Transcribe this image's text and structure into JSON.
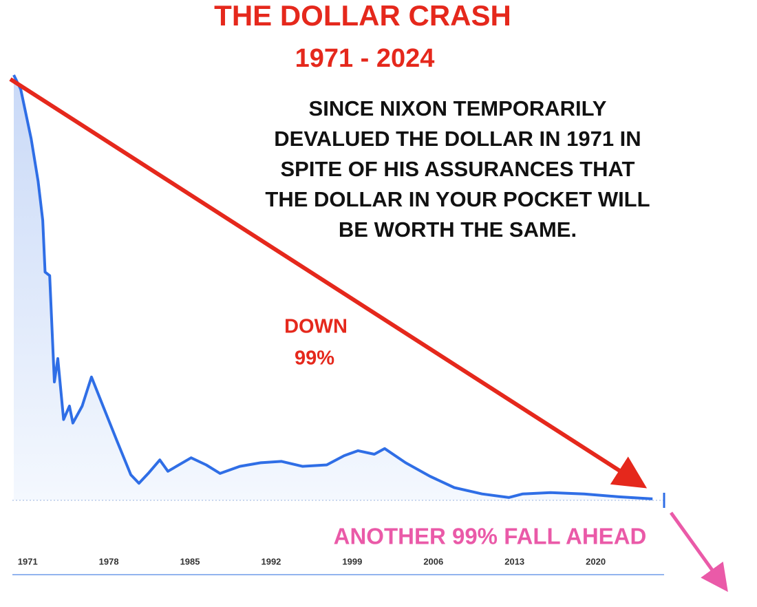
{
  "chart_data": {
    "type": "line",
    "title": "THE DOLLAR CRASH",
    "subtitle": "1971 - 2024",
    "annotations": [
      "SINCE NIXON TEMPORARILY",
      "DEVALUED THE DOLLAR IN 1971 IN",
      "SPITE OF HIS ASSURANCES THAT",
      "THE DOLLAR IN YOUR POCKET WILL",
      "BE WORTH THE SAME."
    ],
    "down_label": [
      "DOWN",
      "99%"
    ],
    "ahead_label": "ANOTHER  99% FALL AHEAD",
    "x": [
      1969.8,
      1970.4,
      1971.3,
      1971.9,
      1972.3,
      1972.5,
      1972.9,
      1973.3,
      1973.6,
      1974.1,
      1974.6,
      1974.9,
      1975.7,
      1976.5,
      1977.5,
      1978.7,
      1979.9,
      1980.6,
      1981.4,
      1982.4,
      1983.1,
      1985.1,
      1986.4,
      1987.6,
      1989.3,
      1991.1,
      1992.9,
      1994.7,
      1996.8,
      1998.3,
      1999.5,
      2000.9,
      2001.8,
      2003.6,
      2005.7,
      2007.8,
      2010.2,
      2012.5,
      2013.7,
      2016.1,
      2019.0,
      2022.0,
      2024.9
    ],
    "series": [
      {
        "color": "#2f6ee6",
        "values": [
          6.0,
          5.8,
          5.1,
          4.5,
          3.95,
          3.22,
          3.17,
          1.67,
          2.0,
          1.14,
          1.33,
          1.09,
          1.33,
          1.74,
          1.33,
          0.84,
          0.36,
          0.24,
          0.38,
          0.57,
          0.41,
          0.6,
          0.5,
          0.38,
          0.48,
          0.53,
          0.55,
          0.48,
          0.5,
          0.63,
          0.7,
          0.65,
          0.73,
          0.53,
          0.34,
          0.18,
          0.09,
          0.04,
          0.09,
          0.11,
          0.09,
          0.05,
          0.02
        ]
      }
    ],
    "xlim": [
      1969.8,
      2025.9
    ],
    "ylim": [
      0,
      6
    ],
    "xticks": [
      1971,
      1978,
      1985,
      1992,
      1999,
      2006,
      2013,
      2020
    ]
  }
}
